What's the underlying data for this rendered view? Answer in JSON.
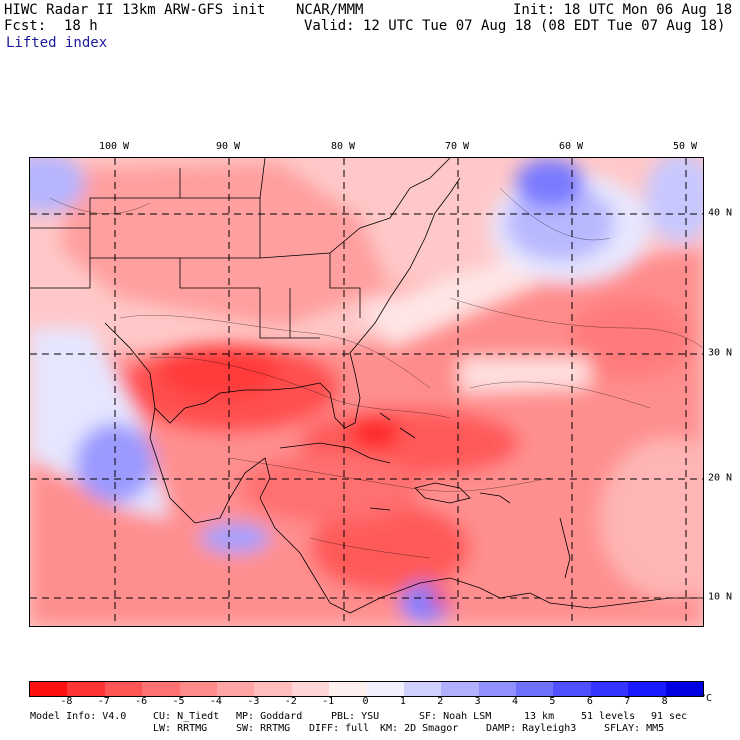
{
  "header": {
    "title": "HIWC Radar II 13km ARW-GFS init",
    "org": "NCAR/MMM",
    "init": "Init: 18 UTC Mon 06 Aug 18",
    "fcst_label": "Fcst:",
    "fcst_value": "18 h",
    "valid": "Valid: 12 UTC Tue 07 Aug 18 (08 EDT Tue 07 Aug 18)",
    "field": "Lifted index"
  },
  "lon_labels": [
    "100 W",
    "90 W",
    "80 W",
    "70 W",
    "60 W",
    "50 W"
  ],
  "lat_labels": [
    "40 N",
    "30 N",
    "20 N",
    "10 N"
  ],
  "colorbar": {
    "ticks": [
      "-8",
      "-7",
      "-6",
      "-5",
      "-4",
      "-3",
      "-2",
      "-1",
      "0",
      "1",
      "2",
      "3",
      "4",
      "5",
      "6",
      "7",
      "8"
    ],
    "unit": "°C",
    "colors": [
      "#ff1010",
      "#ff3535",
      "#ff5555",
      "#ff7070",
      "#ff8a8a",
      "#ffa5a5",
      "#ffbdbd",
      "#ffd5d5",
      "#fff0f0",
      "#f0f0ff",
      "#d0d0ff",
      "#b0b0ff",
      "#9090ff",
      "#7070ff",
      "#5050ff",
      "#3535ff",
      "#1a1aff",
      "#0000e0"
    ]
  },
  "footer": {
    "line1": [
      "Model Info: V4.0",
      "CU: N_Tiedt",
      "MP: Goddard",
      "PBL: YSU",
      "SF: Noah LSM",
      "13 km",
      "51 levels",
      "91 sec"
    ],
    "line2": [
      "LW: RRTMG",
      "SW: RRTMG",
      "DIFF: full",
      "KM: 2D Smagor",
      "DAMP: Rayleigh3",
      "SFLAY: MM5"
    ]
  }
}
